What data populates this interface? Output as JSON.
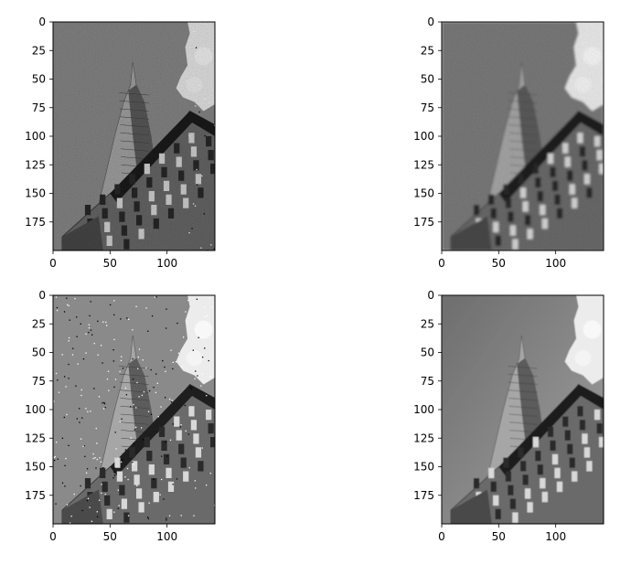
{
  "chart_data": [
    {
      "type": "image",
      "panel": "top-left",
      "description_tag": "noisy-gaussian",
      "xlim": [
        0,
        142
      ],
      "ylim": [
        200,
        0
      ],
      "xticks": [
        0,
        50,
        100
      ],
      "yticks": [
        0,
        25,
        50,
        75,
        100,
        125,
        150,
        175
      ],
      "xtick_labels": [
        "0",
        "50",
        "100"
      ],
      "ytick_labels": [
        "0",
        "25",
        "50",
        "75",
        "100",
        "125",
        "150",
        "175"
      ],
      "colormap": "gray",
      "grid": false
    },
    {
      "type": "image",
      "panel": "top-right",
      "description_tag": "blurred",
      "xlim": [
        0,
        142
      ],
      "ylim": [
        200,
        0
      ],
      "xticks": [
        0,
        50,
        100
      ],
      "yticks": [
        0,
        25,
        50,
        75,
        100,
        125,
        150,
        175
      ],
      "xtick_labels": [
        "0",
        "50",
        "100"
      ],
      "ytick_labels": [
        "0",
        "25",
        "50",
        "75",
        "100",
        "125",
        "150",
        "175"
      ],
      "colormap": "gray",
      "grid": false
    },
    {
      "type": "image",
      "panel": "bottom-left",
      "description_tag": "salt-and-pepper",
      "xlim": [
        0,
        142
      ],
      "ylim": [
        200,
        0
      ],
      "xticks": [
        0,
        50,
        100
      ],
      "yticks": [
        0,
        25,
        50,
        75,
        100,
        125,
        150,
        175
      ],
      "xtick_labels": [
        "0",
        "50",
        "100"
      ],
      "ytick_labels": [
        "0",
        "25",
        "50",
        "75",
        "100",
        "125",
        "150",
        "175"
      ],
      "colormap": "gray",
      "grid": false
    },
    {
      "type": "image",
      "panel": "bottom-right",
      "description_tag": "smooth",
      "xlim": [
        0,
        142
      ],
      "ylim": [
        200,
        0
      ],
      "xticks": [
        0,
        50,
        100
      ],
      "yticks": [
        0,
        25,
        50,
        75,
        100,
        125,
        150,
        175
      ],
      "xtick_labels": [
        "0",
        "50",
        "100"
      ],
      "ytick_labels": [
        "0",
        "25",
        "50",
        "75",
        "100",
        "125",
        "150",
        "175"
      ],
      "colormap": "gray",
      "grid": false
    }
  ],
  "colors": {
    "frame": "#000000",
    "background": "#ffffff"
  }
}
